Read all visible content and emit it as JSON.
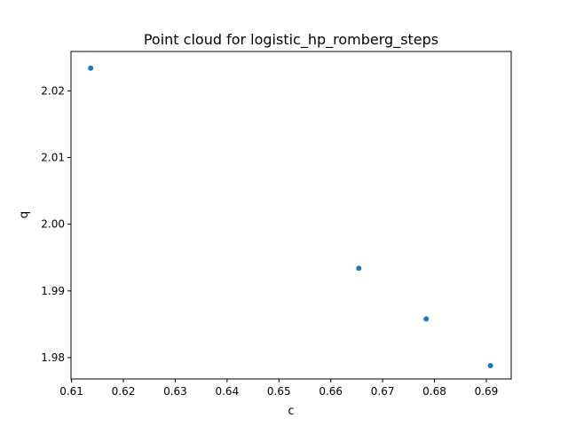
{
  "chart_data": {
    "type": "scatter",
    "title": "Point cloud for logistic_hp_romberg_steps",
    "xlabel": "c",
    "ylabel": "q",
    "xlim": [
      0.6099,
      0.6948
    ],
    "ylim": [
      1.9768,
      2.0259
    ],
    "xticks": [
      0.61,
      0.62,
      0.63,
      0.64,
      0.65,
      0.66,
      0.67,
      0.68,
      0.69
    ],
    "xtick_labels": [
      "0.61",
      "0.62",
      "0.63",
      "0.64",
      "0.65",
      "0.66",
      "0.67",
      "0.68",
      "0.69"
    ],
    "yticks": [
      1.98,
      1.99,
      2.0,
      2.01,
      2.02
    ],
    "ytick_labels": [
      "1.98",
      "1.99",
      "2.00",
      "2.01",
      "2.02"
    ],
    "grid": false,
    "series": [
      {
        "color": "#1f77b4",
        "x": [
          0.6137,
          0.6654,
          0.6784,
          0.6908
        ],
        "y": [
          2.0234,
          1.9934,
          1.9858,
          1.9788
        ]
      }
    ]
  }
}
